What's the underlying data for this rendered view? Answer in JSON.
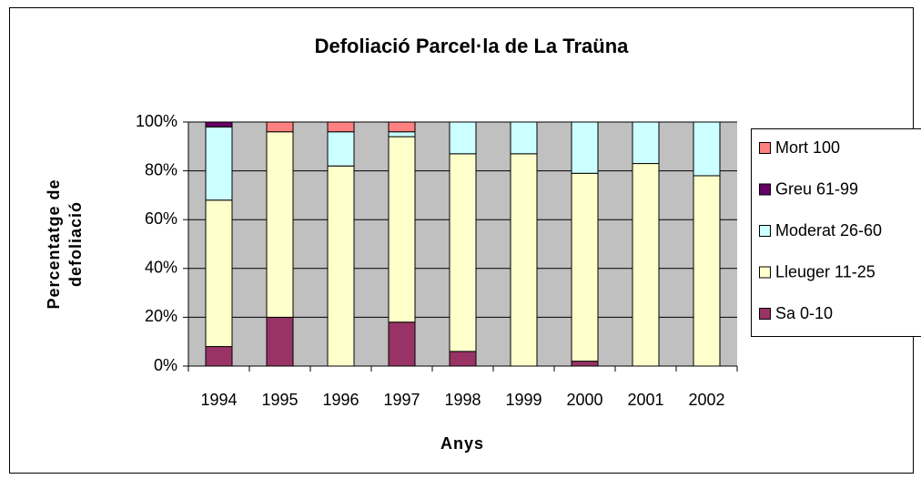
{
  "chart_data": {
    "type": "bar",
    "stacked": true,
    "title": "Defoliació Parcel·la de La Traüna",
    "x_label": "Anys",
    "y_label": [
      "Percentatge de",
      "defoliació"
    ],
    "categories": [
      "1994",
      "1995",
      "1996",
      "1997",
      "1998",
      "1999",
      "2000",
      "2001",
      "2002"
    ],
    "series": [
      {
        "name": "Sa 0-10",
        "color": "#993366",
        "values": [
          8,
          20,
          0,
          18,
          6,
          0,
          2,
          0,
          0
        ]
      },
      {
        "name": "Lleuger 11-25",
        "color": "#ffffcc",
        "values": [
          60,
          76,
          82,
          76,
          81,
          87,
          77,
          83,
          78
        ]
      },
      {
        "name": "Moderat 26-60",
        "color": "#ccffff",
        "values": [
          30,
          0,
          14,
          2,
          13,
          13,
          21,
          17,
          22
        ]
      },
      {
        "name": "Greu 61-99",
        "color": "#660066",
        "values": [
          2,
          0,
          0,
          0,
          0,
          0,
          0,
          0,
          0
        ]
      },
      {
        "name": "Mort 100",
        "color": "#ff8080",
        "values": [
          0,
          4,
          4,
          4,
          0,
          0,
          0,
          0,
          0
        ]
      }
    ],
    "ylim": [
      0,
      100
    ],
    "yticks": [
      {
        "value": 0,
        "label": "0%"
      },
      {
        "value": 20,
        "label": "20%"
      },
      {
        "value": 40,
        "label": "40%"
      },
      {
        "value": 60,
        "label": "60%"
      },
      {
        "value": 80,
        "label": "80%"
      },
      {
        "value": 100,
        "label": "100%"
      }
    ],
    "grid": true,
    "legend": "right"
  }
}
